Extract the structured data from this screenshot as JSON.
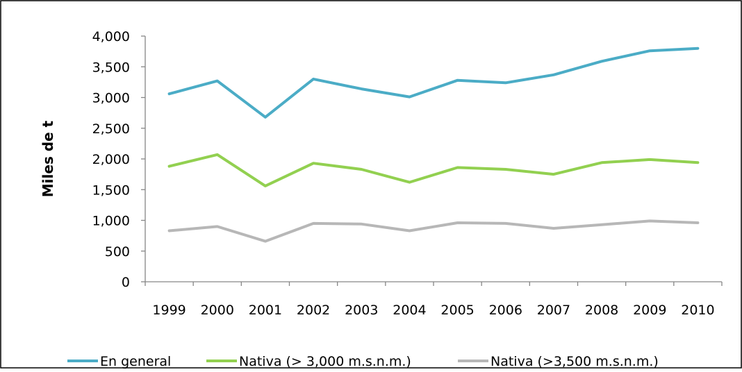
{
  "chart_data": {
    "type": "line",
    "title": "",
    "xlabel": "",
    "ylabel": "Miles de t",
    "ylim": [
      0,
      4000
    ],
    "yticks": [
      "0",
      "500",
      "1,000",
      "1,500",
      "2,000",
      "2,500",
      "3,000",
      "3,500",
      "4,000"
    ],
    "ytick_values": [
      0,
      500,
      1000,
      1500,
      2000,
      2500,
      3000,
      3500,
      4000
    ],
    "categories": [
      "1999",
      "2000",
      "2001",
      "2002",
      "2003",
      "2004",
      "2005",
      "2006",
      "2007",
      "2008",
      "2009",
      "2010"
    ],
    "grid": false,
    "legend_position": "bottom",
    "series": [
      {
        "name": "En general",
        "color": "#4bacc6",
        "values": [
          3060,
          3270,
          2680,
          3300,
          3140,
          3010,
          3280,
          3240,
          3370,
          3590,
          3760,
          3800
        ]
      },
      {
        "name": "Nativa (> 3,000 m.s.n.m.)",
        "color": "#92d050",
        "values": [
          1880,
          2070,
          1560,
          1930,
          1830,
          1620,
          1860,
          1830,
          1750,
          1940,
          1990,
          1940
        ]
      },
      {
        "name": "Nativa (>3,500 m.s.n.m.)",
        "color": "#b7b7b7",
        "values": [
          830,
          900,
          660,
          950,
          940,
          830,
          960,
          950,
          870,
          930,
          990,
          960
        ]
      }
    ]
  }
}
